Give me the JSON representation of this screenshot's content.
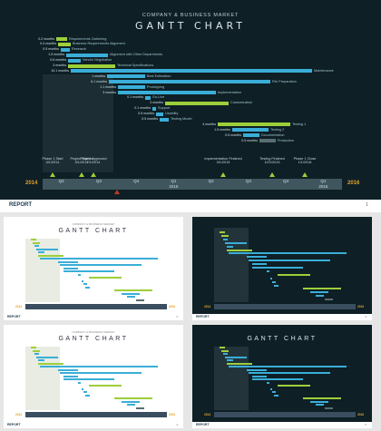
{
  "main": {
    "header": "COMPANY & BUSINESS MARKET",
    "title": "GANTT CHART",
    "year_start": "2014",
    "year_end": "2016",
    "ticks": [
      "Q2",
      "Q3",
      "Q4",
      "Q1\n2015",
      "Q2",
      "Q3",
      "Q4",
      "Q1\n2016"
    ],
    "tasks": [
      {
        "dur": "0.2 months",
        "name": "Requirements Gathering",
        "color": "#9dcf3a"
      },
      {
        "dur": "0.4 months",
        "name": "Business Requirements Alignment",
        "color": "#9dcf3a"
      },
      {
        "dur": "0.5 months",
        "name": "Research",
        "color": "#3aaed8"
      },
      {
        "dur": "1.5 months",
        "name": "Alignment with Other Departments",
        "color": "#3aaed8"
      },
      {
        "dur": "0.6 months",
        "name": "Vendor Negotiation",
        "color": "#3aaed8"
      },
      {
        "dur": "3 months",
        "name": "Technical Specifications",
        "color": "#9dcf3a"
      },
      {
        "dur": "10.1 months",
        "name": "Maintenance",
        "color": "#3aaed8"
      },
      {
        "dur": "1 months",
        "name": "Best Estimation",
        "color": "#3aaed8"
      },
      {
        "dur": "6.1 months",
        "name": "File Preparation",
        "color": "#3aaed8"
      },
      {
        "dur": "1.1 months",
        "name": "Prototyping",
        "color": "#3aaed8"
      },
      {
        "dur": "3 months",
        "name": "Implementation",
        "color": "#3aaed8"
      },
      {
        "dur": "0.1 months",
        "name": "Go-Live",
        "color": "#3aaed8"
      },
      {
        "dur": "3 months",
        "name": "Customization",
        "color": "#9dcf3a"
      },
      {
        "dur": "0.1 months",
        "name": "Support",
        "color": "#3aaed8"
      },
      {
        "dur": "0.5 months",
        "name": "Usability",
        "color": "#3aaed8"
      },
      {
        "dur": "0.5 months",
        "name": "Testing Model",
        "color": "#3aaed8"
      },
      {
        "dur": "4 months",
        "name": "Testing 1",
        "color": "#9dcf3a"
      },
      {
        "dur": "1.5 months",
        "name": "Testing 2",
        "color": "#3aaed8"
      },
      {
        "dur": "0.5 months",
        "name": "Documentation",
        "color": "#3aaed8"
      },
      {
        "dur": "0.5 months",
        "name": "Production",
        "color": "#5a6d73"
      }
    ],
    "milestones": [
      {
        "name": "Phase 1 Start",
        "date": "4/1/2014"
      },
      {
        "name": "Project Started",
        "date": "5/1/2014"
      },
      {
        "name": "Project Approved",
        "date": "7/1/2014"
      },
      {
        "name": "Implementation Finished",
        "date": "3/1/2015"
      },
      {
        "name": "Testing Finished",
        "date": "10/1/2015"
      },
      {
        "name": "Phase 1 Close",
        "date": "1/1/2016"
      }
    ]
  },
  "report": {
    "label": "REPORT",
    "page": "1"
  },
  "thumbs": [
    {
      "theme": "light",
      "header": "COMPANY & BUSINESS MARKET",
      "title": "GANTT CHART",
      "footer": "REPORT",
      "page": "2",
      "year_start": "2014",
      "year_end": "2016"
    },
    {
      "theme": "dark",
      "header": "",
      "title": "",
      "footer": "REPORT",
      "page": "3",
      "year_start": "2014",
      "year_end": "2016"
    },
    {
      "theme": "light",
      "header": "COMPANY & BUSINESS MARKET",
      "title": "GANTT CHART",
      "footer": "REPORT",
      "page": "4",
      "year_start": "2014",
      "year_end": "2016"
    },
    {
      "theme": "dark",
      "header": "",
      "title": "GANTT CHART",
      "footer": "REPORT",
      "page": "5",
      "year_start": "2014",
      "year_end": "2016"
    }
  ]
}
